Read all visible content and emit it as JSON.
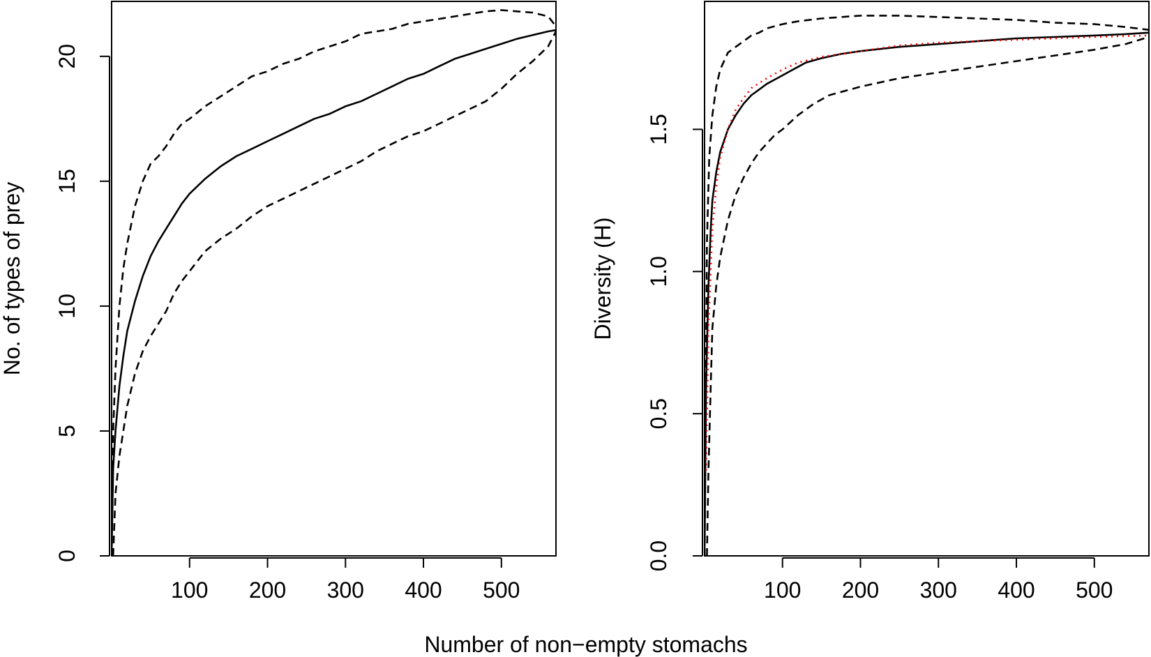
{
  "figure": {
    "xlabel": "Number of non−empty stomachs"
  },
  "chart_data": [
    {
      "type": "line",
      "title": "",
      "xlabel": "Number of non−empty stomachs",
      "ylabel": "No. of types of prey",
      "xlim": [
        0,
        570
      ],
      "ylim": [
        0,
        22.2
      ],
      "x_ticks": [
        100,
        200,
        300,
        400,
        500
      ],
      "y_ticks": [
        0,
        5,
        10,
        15,
        20
      ],
      "grid": false,
      "series": [
        {
          "style": "solid",
          "color": "#000000",
          "points": [
            [
              0,
              0
            ],
            [
              2,
              3.5
            ],
            [
              5,
              5
            ],
            [
              10,
              6.8
            ],
            [
              15,
              8
            ],
            [
              20,
              9
            ],
            [
              30,
              10.2
            ],
            [
              40,
              11.2
            ],
            [
              50,
              12
            ],
            [
              60,
              12.6
            ],
            [
              70,
              13.1
            ],
            [
              80,
              13.6
            ],
            [
              90,
              14.1
            ],
            [
              100,
              14.5
            ],
            [
              120,
              15.1
            ],
            [
              140,
              15.6
            ],
            [
              160,
              16
            ],
            [
              180,
              16.3
            ],
            [
              200,
              16.6
            ],
            [
              220,
              16.9
            ],
            [
              240,
              17.2
            ],
            [
              260,
              17.5
            ],
            [
              280,
              17.7
            ],
            [
              300,
              18
            ],
            [
              320,
              18.2
            ],
            [
              340,
              18.5
            ],
            [
              360,
              18.8
            ],
            [
              380,
              19.1
            ],
            [
              400,
              19.3
            ],
            [
              420,
              19.6
            ],
            [
              440,
              19.9
            ],
            [
              460,
              20.1
            ],
            [
              480,
              20.3
            ],
            [
              500,
              20.5
            ],
            [
              520,
              20.7
            ],
            [
              540,
              20.85
            ],
            [
              560,
              21
            ],
            [
              570,
              21.05
            ]
          ]
        },
        {
          "style": "dashed",
          "color": "#000000",
          "points": [
            [
              0,
              0
            ],
            [
              2,
              5
            ],
            [
              5,
              7.5
            ],
            [
              10,
              10
            ],
            [
              15,
              11.5
            ],
            [
              20,
              12.5
            ],
            [
              30,
              14
            ],
            [
              40,
              15
            ],
            [
              50,
              15.7
            ],
            [
              60,
              16
            ],
            [
              70,
              16.4
            ],
            [
              80,
              16.9
            ],
            [
              90,
              17.3
            ],
            [
              100,
              17.5
            ],
            [
              120,
              18
            ],
            [
              140,
              18.4
            ],
            [
              160,
              18.8
            ],
            [
              180,
              19.2
            ],
            [
              200,
              19.4
            ],
            [
              220,
              19.7
            ],
            [
              240,
              19.9
            ],
            [
              260,
              20.2
            ],
            [
              280,
              20.4
            ],
            [
              300,
              20.6
            ],
            [
              320,
              20.9
            ],
            [
              340,
              21
            ],
            [
              360,
              21.1
            ],
            [
              380,
              21.3
            ],
            [
              400,
              21.4
            ],
            [
              420,
              21.5
            ],
            [
              440,
              21.6
            ],
            [
              460,
              21.7
            ],
            [
              480,
              21.8
            ],
            [
              500,
              21.85
            ],
            [
              520,
              21.8
            ],
            [
              540,
              21.75
            ],
            [
              560,
              21.6
            ],
            [
              570,
              21.2
            ]
          ]
        },
        {
          "style": "dashed",
          "color": "#000000",
          "points": [
            [
              2,
              0
            ],
            [
              5,
              2.5
            ],
            [
              10,
              4
            ],
            [
              15,
              5
            ],
            [
              20,
              6
            ],
            [
              30,
              7.3
            ],
            [
              40,
              8.2
            ],
            [
              50,
              8.8
            ],
            [
              60,
              9.3
            ],
            [
              70,
              9.8
            ],
            [
              80,
              10.5
            ],
            [
              90,
              11
            ],
            [
              100,
              11.4
            ],
            [
              120,
              12.2
            ],
            [
              140,
              12.7
            ],
            [
              160,
              13.1
            ],
            [
              180,
              13.6
            ],
            [
              200,
              14
            ],
            [
              220,
              14.3
            ],
            [
              240,
              14.6
            ],
            [
              260,
              14.9
            ],
            [
              280,
              15.2
            ],
            [
              300,
              15.5
            ],
            [
              320,
              15.8
            ],
            [
              340,
              16.2
            ],
            [
              360,
              16.5
            ],
            [
              380,
              16.8
            ],
            [
              400,
              17
            ],
            [
              420,
              17.3
            ],
            [
              440,
              17.6
            ],
            [
              460,
              17.9
            ],
            [
              480,
              18.2
            ],
            [
              500,
              18.7
            ],
            [
              520,
              19.3
            ],
            [
              540,
              19.8
            ],
            [
              560,
              20.4
            ],
            [
              570,
              21
            ]
          ]
        }
      ]
    },
    {
      "type": "line",
      "title": "",
      "xlabel": "Number of non−empty stomachs",
      "ylabel": "Diversity (H)",
      "xlim": [
        0,
        570
      ],
      "ylim": [
        0,
        1.95
      ],
      "x_ticks": [
        100,
        200,
        300,
        400,
        500
      ],
      "y_ticks": [
        0.0,
        0.5,
        1.0,
        1.5
      ],
      "y_tick_labels": [
        "0.0",
        "0.5",
        "1.0",
        "1.5"
      ],
      "grid": false,
      "series": [
        {
          "style": "solid",
          "color": "#000000",
          "points": [
            [
              0,
              0
            ],
            [
              2,
              0.6
            ],
            [
              5,
              0.95
            ],
            [
              8,
              1.15
            ],
            [
              10,
              1.25
            ],
            [
              15,
              1.35
            ],
            [
              20,
              1.42
            ],
            [
              25,
              1.46
            ],
            [
              30,
              1.5
            ],
            [
              40,
              1.55
            ],
            [
              50,
              1.59
            ],
            [
              60,
              1.62
            ],
            [
              70,
              1.64
            ],
            [
              80,
              1.66
            ],
            [
              90,
              1.675
            ],
            [
              100,
              1.69
            ],
            [
              110,
              1.705
            ],
            [
              120,
              1.72
            ],
            [
              130,
              1.735
            ],
            [
              150,
              1.75
            ],
            [
              175,
              1.765
            ],
            [
              200,
              1.775
            ],
            [
              250,
              1.79
            ],
            [
              300,
              1.8
            ],
            [
              350,
              1.81
            ],
            [
              400,
              1.82
            ],
            [
              450,
              1.825
            ],
            [
              500,
              1.83
            ],
            [
              540,
              1.835
            ],
            [
              570,
              1.84
            ]
          ]
        },
        {
          "style": "dotted",
          "color": "#ff0000",
          "points": [
            [
              2,
              0.3
            ],
            [
              5,
              0.8
            ],
            [
              10,
              1.15
            ],
            [
              15,
              1.3
            ],
            [
              20,
              1.4
            ],
            [
              30,
              1.5
            ],
            [
              40,
              1.57
            ],
            [
              50,
              1.61
            ],
            [
              60,
              1.645
            ],
            [
              80,
              1.68
            ],
            [
              100,
              1.71
            ],
            [
              120,
              1.735
            ],
            [
              150,
              1.755
            ],
            [
              200,
              1.775
            ],
            [
              250,
              1.795
            ],
            [
              300,
              1.805
            ],
            [
              400,
              1.815
            ],
            [
              500,
              1.825
            ],
            [
              570,
              1.83
            ]
          ]
        },
        {
          "style": "dashed",
          "color": "#000000",
          "points": [
            [
              0,
              0
            ],
            [
              3,
              1.1
            ],
            [
              6,
              1.4
            ],
            [
              10,
              1.55
            ],
            [
              15,
              1.65
            ],
            [
              20,
              1.71
            ],
            [
              30,
              1.77
            ],
            [
              40,
              1.79
            ],
            [
              50,
              1.81
            ],
            [
              60,
              1.83
            ],
            [
              70,
              1.84
            ],
            [
              80,
              1.855
            ],
            [
              100,
              1.87
            ],
            [
              120,
              1.88
            ],
            [
              150,
              1.89
            ],
            [
              200,
              1.9
            ],
            [
              250,
              1.9
            ],
            [
              300,
              1.895
            ],
            [
              350,
              1.89
            ],
            [
              400,
              1.885
            ],
            [
              450,
              1.875
            ],
            [
              500,
              1.87
            ],
            [
              540,
              1.86
            ],
            [
              570,
              1.85
            ]
          ]
        },
        {
          "style": "dashed",
          "color": "#000000",
          "points": [
            [
              3,
              0
            ],
            [
              5,
              0.3
            ],
            [
              8,
              0.6
            ],
            [
              10,
              0.8
            ],
            [
              15,
              0.95
            ],
            [
              20,
              1.05
            ],
            [
              30,
              1.18
            ],
            [
              40,
              1.27
            ],
            [
              50,
              1.33
            ],
            [
              60,
              1.38
            ],
            [
              70,
              1.42
            ],
            [
              80,
              1.45
            ],
            [
              90,
              1.48
            ],
            [
              100,
              1.5
            ],
            [
              120,
              1.55
            ],
            [
              140,
              1.59
            ],
            [
              160,
              1.62
            ],
            [
              200,
              1.65
            ],
            [
              250,
              1.68
            ],
            [
              300,
              1.7
            ],
            [
              350,
              1.72
            ],
            [
              400,
              1.74
            ],
            [
              450,
              1.76
            ],
            [
              500,
              1.78
            ],
            [
              540,
              1.8
            ],
            [
              570,
              1.825
            ]
          ]
        }
      ]
    }
  ]
}
